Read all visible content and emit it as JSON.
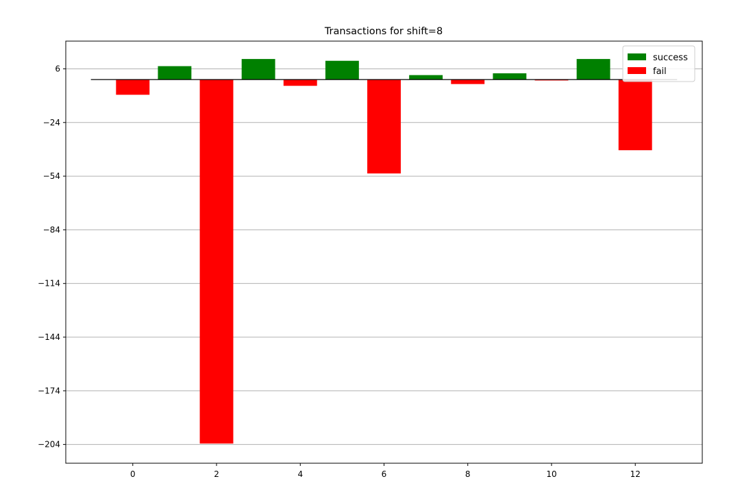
{
  "chart_data": {
    "type": "bar",
    "title": "Transactions for shift=8",
    "xlabel": "",
    "ylabel": "",
    "xlim": [
      -1.6,
      13.6
    ],
    "ylim": [
      -214.5,
      21.5
    ],
    "x_ticks": [
      0,
      2,
      4,
      6,
      8,
      10,
      12
    ],
    "y_ticks": [
      6,
      -24,
      -54,
      -84,
      -114,
      -144,
      -174,
      -204
    ],
    "grid": "horizontal",
    "legend_position": "top-right",
    "bar_width": 0.8,
    "baseline": {
      "value": 0,
      "from": -1,
      "to": 13
    },
    "series": [
      {
        "name": "fail",
        "color": "#ff0000",
        "x": [
          0,
          2,
          4,
          6,
          8,
          10,
          12
        ],
        "values": [
          -8.5,
          -203.5,
          -3.5,
          -52.5,
          -2.5,
          -0.5,
          -39.5
        ]
      },
      {
        "name": "success",
        "color": "#008000",
        "x": [
          1,
          3,
          5,
          7,
          9,
          11
        ],
        "values": [
          7.5,
          11.5,
          10.5,
          2.5,
          3.5,
          11.5
        ]
      }
    ],
    "legend": [
      {
        "label": "success",
        "color": "#008000"
      },
      {
        "label": "fail",
        "color": "#ff0000"
      }
    ]
  }
}
